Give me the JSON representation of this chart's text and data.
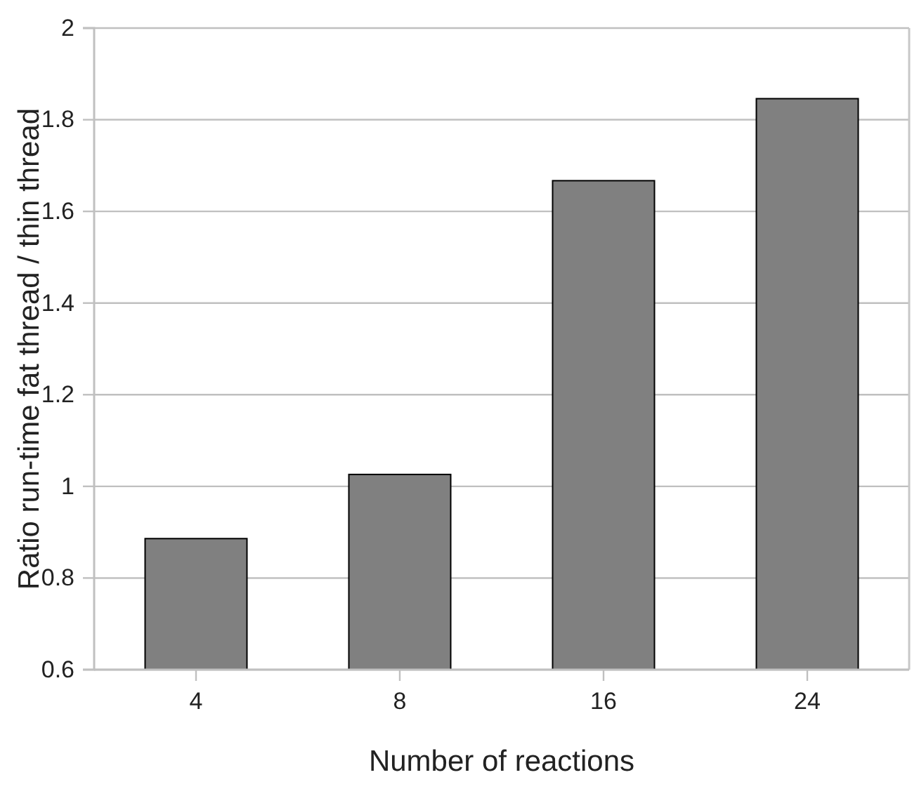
{
  "chart_data": {
    "type": "bar",
    "xlabel": "Number of reactions",
    "ylabel": "Ratio run-time fat thread / thin thread",
    "categories": [
      "4",
      "8",
      "16",
      "24"
    ],
    "values": [
      0.886,
      1.026,
      1.667,
      1.846
    ],
    "color": "#808080",
    "ylim": [
      0.6,
      2
    ],
    "yticks": [
      0.6,
      0.8,
      1,
      1.2,
      1.4,
      1.6,
      1.8,
      2
    ],
    "grid": "y"
  }
}
